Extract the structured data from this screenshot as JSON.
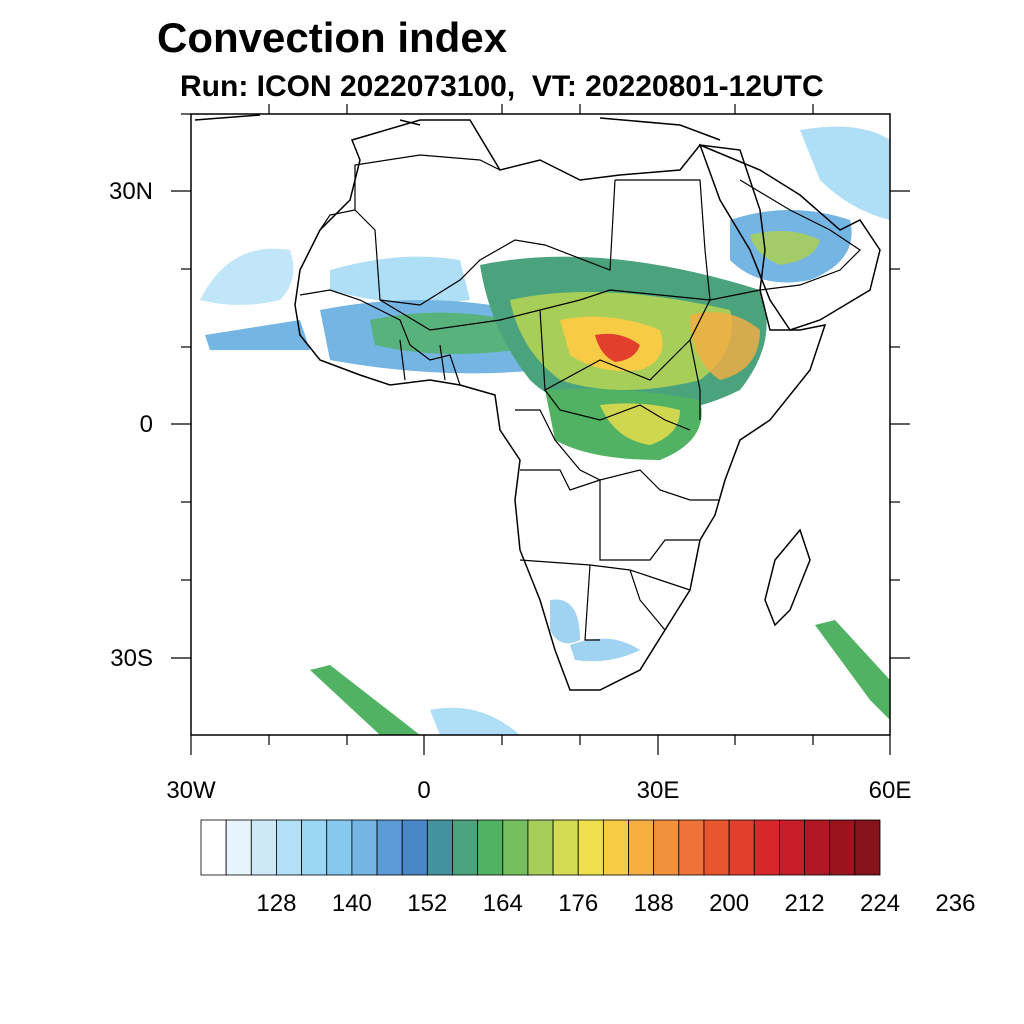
{
  "title": "Convection index",
  "subtitle": "Run: ICON 2022073100,  VT: 20220801-12UTC",
  "map": {
    "region": "Africa",
    "lon_range": [
      -30,
      60
    ],
    "lat_range": [
      -40,
      40
    ],
    "lat_ticks": [
      {
        "value": 30,
        "label": "30N"
      },
      {
        "value": 0,
        "label": "0"
      },
      {
        "value": -30,
        "label": "30S"
      }
    ],
    "lon_ticks": [
      {
        "value": -30,
        "label": "30W"
      },
      {
        "value": 0,
        "label": "0"
      },
      {
        "value": 30,
        "label": "30E"
      },
      {
        "value": 60,
        "label": "60E"
      }
    ]
  },
  "colorbar": {
    "colors": [
      "#ffffff",
      "#e6f4fc",
      "#cde9f8",
      "#b3e0f7",
      "#9bd6f5",
      "#87c8ee",
      "#74b5e3",
      "#5c9bd5",
      "#4b86c6",
      "#43929e",
      "#4aa37c",
      "#50b262",
      "#74c060",
      "#a8ce5a",
      "#d3dc52",
      "#efe04e",
      "#f8cb47",
      "#f6ad42",
      "#f3903c",
      "#ef7336",
      "#e9552f",
      "#e23f2c",
      "#d7272a",
      "#c61d28",
      "#b01823",
      "#9a141e",
      "#86121b"
    ],
    "labels": [
      "128",
      "140",
      "152",
      "164",
      "176",
      "188",
      "200",
      "212",
      "224",
      "236"
    ]
  }
}
